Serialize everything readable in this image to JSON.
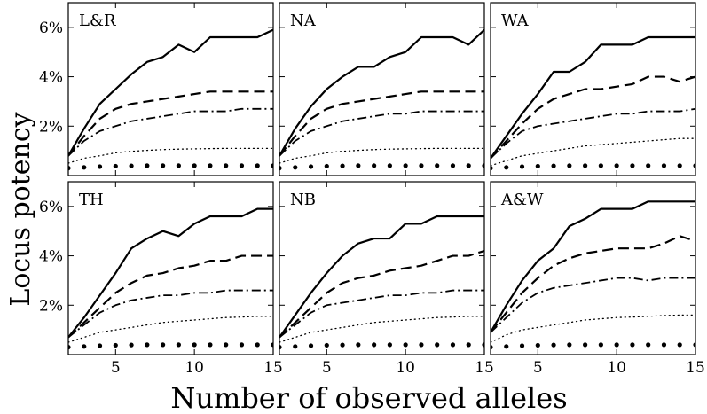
{
  "chart_data": {
    "type": "line",
    "xlabel": "Number of observed alleles",
    "ylabel": "Locus potency",
    "xlim": [
      2,
      15
    ],
    "ylim": [
      0,
      0.07
    ],
    "x_ticks": [
      5,
      10,
      15
    ],
    "x_tick_labels": [
      "5",
      "10",
      "15"
    ],
    "y_ticks": [
      0.02,
      0.04,
      0.06
    ],
    "y_tick_labels": [
      "2%",
      "4%",
      "6%"
    ],
    "grid": false,
    "x": [
      2,
      3,
      4,
      5,
      6,
      7,
      8,
      9,
      10,
      11,
      12,
      13,
      14,
      15
    ],
    "panels": [
      {
        "label": "L&R",
        "series": [
          {
            "style": "solid",
            "values": [
              0.008,
              0.019,
              0.029,
              0.035,
              0.041,
              0.046,
              0.048,
              0.053,
              0.05,
              0.056,
              0.056,
              0.056,
              0.056,
              0.059
            ]
          },
          {
            "style": "dashed",
            "values": [
              0.008,
              0.016,
              0.023,
              0.027,
              0.029,
              0.03,
              0.031,
              0.032,
              0.033,
              0.034,
              0.034,
              0.034,
              0.034,
              0.034
            ]
          },
          {
            "style": "dashdot",
            "values": [
              0.008,
              0.014,
              0.018,
              0.02,
              0.022,
              0.023,
              0.024,
              0.025,
              0.026,
              0.026,
              0.026,
              0.027,
              0.027,
              0.027
            ]
          },
          {
            "style": "dotted",
            "values": [
              0.005,
              0.007,
              0.008,
              0.0092,
              0.0098,
              0.0102,
              0.0105,
              0.0107,
              0.0108,
              0.0109,
              0.011,
              0.011,
              0.011,
              0.011
            ]
          },
          {
            "style": "dots",
            "values": [
              0.003,
              0.0033,
              0.0036,
              0.0038,
              0.0039,
              0.004,
              0.004,
              0.004,
              0.004,
              0.004,
              0.004,
              0.004,
              0.004,
              0.004
            ]
          }
        ]
      },
      {
        "label": "NA",
        "series": [
          {
            "style": "solid",
            "values": [
              0.008,
              0.019,
              0.028,
              0.035,
              0.04,
              0.044,
              0.044,
              0.048,
              0.05,
              0.056,
              0.056,
              0.056,
              0.053,
              0.059
            ]
          },
          {
            "style": "dashed",
            "values": [
              0.008,
              0.016,
              0.023,
              0.027,
              0.029,
              0.03,
              0.031,
              0.032,
              0.033,
              0.034,
              0.034,
              0.034,
              0.034,
              0.034
            ]
          },
          {
            "style": "dashdot",
            "values": [
              0.008,
              0.014,
              0.018,
              0.02,
              0.022,
              0.023,
              0.024,
              0.025,
              0.025,
              0.026,
              0.026,
              0.026,
              0.026,
              0.026
            ]
          },
          {
            "style": "dotted",
            "values": [
              0.005,
              0.007,
              0.008,
              0.0092,
              0.0098,
              0.0102,
              0.0105,
              0.0107,
              0.0108,
              0.0109,
              0.011,
              0.011,
              0.011,
              0.011
            ]
          },
          {
            "style": "dots",
            "values": [
              0.003,
              0.0033,
              0.0036,
              0.0038,
              0.0039,
              0.004,
              0.004,
              0.004,
              0.004,
              0.004,
              0.004,
              0.004,
              0.004,
              0.004
            ]
          }
        ]
      },
      {
        "label": "WA",
        "series": [
          {
            "style": "solid",
            "values": [
              0.007,
              0.016,
              0.025,
              0.033,
              0.042,
              0.042,
              0.046,
              0.053,
              0.053,
              0.053,
              0.056,
              0.056,
              0.056,
              0.056
            ]
          },
          {
            "style": "dashed",
            "values": [
              0.007,
              0.014,
              0.021,
              0.027,
              0.031,
              0.033,
              0.035,
              0.035,
              0.036,
              0.037,
              0.04,
              0.04,
              0.038,
              0.04
            ]
          },
          {
            "style": "dashdot",
            "values": [
              0.007,
              0.013,
              0.018,
              0.02,
              0.021,
              0.022,
              0.023,
              0.024,
              0.025,
              0.025,
              0.026,
              0.026,
              0.026,
              0.027
            ]
          },
          {
            "style": "dotted",
            "values": [
              0.004,
              0.006,
              0.008,
              0.009,
              0.01,
              0.011,
              0.012,
              0.0125,
              0.013,
              0.0135,
              0.014,
              0.0145,
              0.015,
              0.015
            ]
          },
          {
            "style": "dots",
            "values": [
              0.003,
              0.0033,
              0.0036,
              0.0038,
              0.0039,
              0.004,
              0.004,
              0.004,
              0.004,
              0.004,
              0.004,
              0.004,
              0.004,
              0.004
            ]
          }
        ]
      },
      {
        "label": "TH",
        "series": [
          {
            "style": "solid",
            "values": [
              0.007,
              0.015,
              0.024,
              0.033,
              0.043,
              0.047,
              0.05,
              0.048,
              0.053,
              0.056,
              0.056,
              0.056,
              0.059,
              0.059
            ]
          },
          {
            "style": "dashed",
            "values": [
              0.007,
              0.013,
              0.019,
              0.025,
              0.029,
              0.032,
              0.033,
              0.035,
              0.036,
              0.038,
              0.038,
              0.04,
              0.04,
              0.04
            ]
          },
          {
            "style": "dashdot",
            "values": [
              0.007,
              0.012,
              0.017,
              0.02,
              0.022,
              0.023,
              0.024,
              0.024,
              0.025,
              0.025,
              0.026,
              0.026,
              0.026,
              0.026
            ]
          },
          {
            "style": "dotted",
            "values": [
              0.005,
              0.007,
              0.009,
              0.01,
              0.011,
              0.012,
              0.013,
              0.0135,
              0.014,
              0.0145,
              0.015,
              0.0152,
              0.0155,
              0.0155
            ]
          },
          {
            "style": "dots",
            "values": [
              0.003,
              0.0033,
              0.0036,
              0.0038,
              0.0039,
              0.004,
              0.004,
              0.004,
              0.004,
              0.004,
              0.004,
              0.004,
              0.004,
              0.004
            ]
          }
        ]
      },
      {
        "label": "NB",
        "series": [
          {
            "style": "solid",
            "values": [
              0.007,
              0.016,
              0.025,
              0.033,
              0.04,
              0.045,
              0.047,
              0.047,
              0.053,
              0.053,
              0.056,
              0.056,
              0.056,
              0.056
            ]
          },
          {
            "style": "dashed",
            "values": [
              0.007,
              0.013,
              0.019,
              0.025,
              0.029,
              0.031,
              0.032,
              0.034,
              0.035,
              0.036,
              0.038,
              0.04,
              0.04,
              0.042
            ]
          },
          {
            "style": "dashdot",
            "values": [
              0.007,
              0.012,
              0.017,
              0.02,
              0.021,
              0.022,
              0.023,
              0.024,
              0.024,
              0.025,
              0.025,
              0.026,
              0.026,
              0.026
            ]
          },
          {
            "style": "dotted",
            "values": [
              0.005,
              0.007,
              0.009,
              0.01,
              0.011,
              0.012,
              0.013,
              0.0135,
              0.014,
              0.0145,
              0.015,
              0.0152,
              0.0155,
              0.0155
            ]
          },
          {
            "style": "dots",
            "values": [
              0.003,
              0.0033,
              0.0036,
              0.0038,
              0.0039,
              0.004,
              0.004,
              0.004,
              0.004,
              0.004,
              0.004,
              0.004,
              0.004,
              0.004
            ]
          }
        ]
      },
      {
        "label": "A&W",
        "series": [
          {
            "style": "solid",
            "values": [
              0.009,
              0.02,
              0.03,
              0.038,
              0.043,
              0.052,
              0.055,
              0.059,
              0.059,
              0.059,
              0.062,
              0.062,
              0.062,
              0.062
            ]
          },
          {
            "style": "dashed",
            "values": [
              0.009,
              0.017,
              0.025,
              0.031,
              0.036,
              0.039,
              0.041,
              0.042,
              0.043,
              0.043,
              0.043,
              0.045,
              0.048,
              0.046
            ]
          },
          {
            "style": "dashdot",
            "values": [
              0.009,
              0.015,
              0.021,
              0.025,
              0.027,
              0.028,
              0.029,
              0.03,
              0.031,
              0.031,
              0.03,
              0.031,
              0.031,
              0.031
            ]
          },
          {
            "style": "dotted",
            "values": [
              0.005,
              0.008,
              0.01,
              0.011,
              0.012,
              0.013,
              0.014,
              0.0145,
              0.015,
              0.0152,
              0.0155,
              0.0158,
              0.016,
              0.016
            ]
          },
          {
            "style": "dots",
            "values": [
              0.003,
              0.0033,
              0.0036,
              0.0038,
              0.0039,
              0.004,
              0.004,
              0.004,
              0.004,
              0.004,
              0.004,
              0.004,
              0.004,
              0.004
            ]
          }
        ]
      }
    ]
  }
}
